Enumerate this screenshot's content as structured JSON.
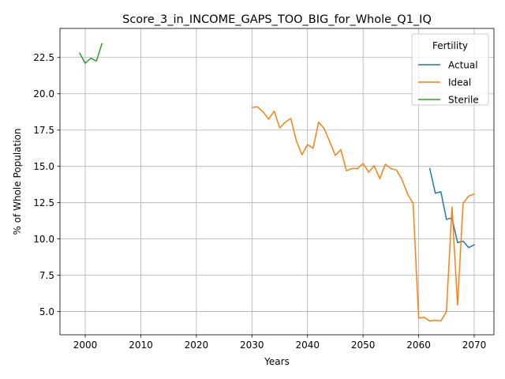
{
  "chart_data": {
    "type": "line",
    "title": "Score_3_in_INCOME_GAPS_TOO_BIG_for_Whole_Q1_IQ",
    "xlabel": "Years",
    "ylabel": "% of Whole Population",
    "xlim": [
      1995.45,
      2073.55
    ],
    "ylim": [
      3.4,
      24.5
    ],
    "xticks": [
      2000,
      2010,
      2020,
      2030,
      2040,
      2050,
      2060,
      2070
    ],
    "yticks": [
      5.0,
      7.5,
      10.0,
      12.5,
      15.0,
      17.5,
      20.0,
      22.5
    ],
    "xtick_labels": [
      "2000",
      "2010",
      "2020",
      "2030",
      "2040",
      "2050",
      "2060",
      "2070"
    ],
    "ytick_labels": [
      "5.0",
      "7.5",
      "10.0",
      "12.5",
      "15.0",
      "17.5",
      "20.0",
      "22.5"
    ],
    "grid": true,
    "legend": {
      "title": "Fertility",
      "placement": "top-right"
    },
    "series": [
      {
        "name": "Actual",
        "color": "#1f77b4",
        "x": [
          2062,
          2063,
          2064,
          2065,
          2066,
          2067,
          2068,
          2069,
          2070
        ],
        "y": [
          14.85,
          13.15,
          13.25,
          11.35,
          11.45,
          9.75,
          9.85,
          9.4,
          9.6
        ]
      },
      {
        "name": "Ideal",
        "color": "#ff7f0e",
        "x": [
          2030,
          2031,
          2032,
          2033,
          2034,
          2035,
          2036,
          2037,
          2038,
          2039,
          2040,
          2041,
          2042,
          2043,
          2044,
          2045,
          2046,
          2047,
          2048,
          2049,
          2050,
          2051,
          2052,
          2053,
          2054,
          2055,
          2056,
          2057,
          2058,
          2059,
          2060,
          2061,
          2062,
          2063,
          2064,
          2065,
          2066,
          2067,
          2068,
          2069,
          2070
        ],
        "y": [
          19.05,
          19.1,
          18.75,
          18.25,
          18.8,
          17.65,
          18.05,
          18.3,
          16.75,
          15.8,
          16.5,
          16.25,
          18.05,
          17.6,
          16.7,
          15.75,
          16.15,
          14.7,
          14.85,
          14.85,
          15.2,
          14.6,
          15.05,
          14.15,
          15.15,
          14.85,
          14.75,
          14.1,
          13.1,
          12.45,
          4.55,
          4.6,
          4.35,
          4.4,
          4.35,
          5.0,
          12.2,
          5.45,
          12.45,
          12.95,
          13.1
        ]
      },
      {
        "name": "Sterile",
        "color": "#2ca02c",
        "x": [
          1999,
          2000,
          2001,
          2002,
          2003
        ],
        "y": [
          22.8,
          22.1,
          22.45,
          22.25,
          23.45
        ]
      }
    ]
  }
}
